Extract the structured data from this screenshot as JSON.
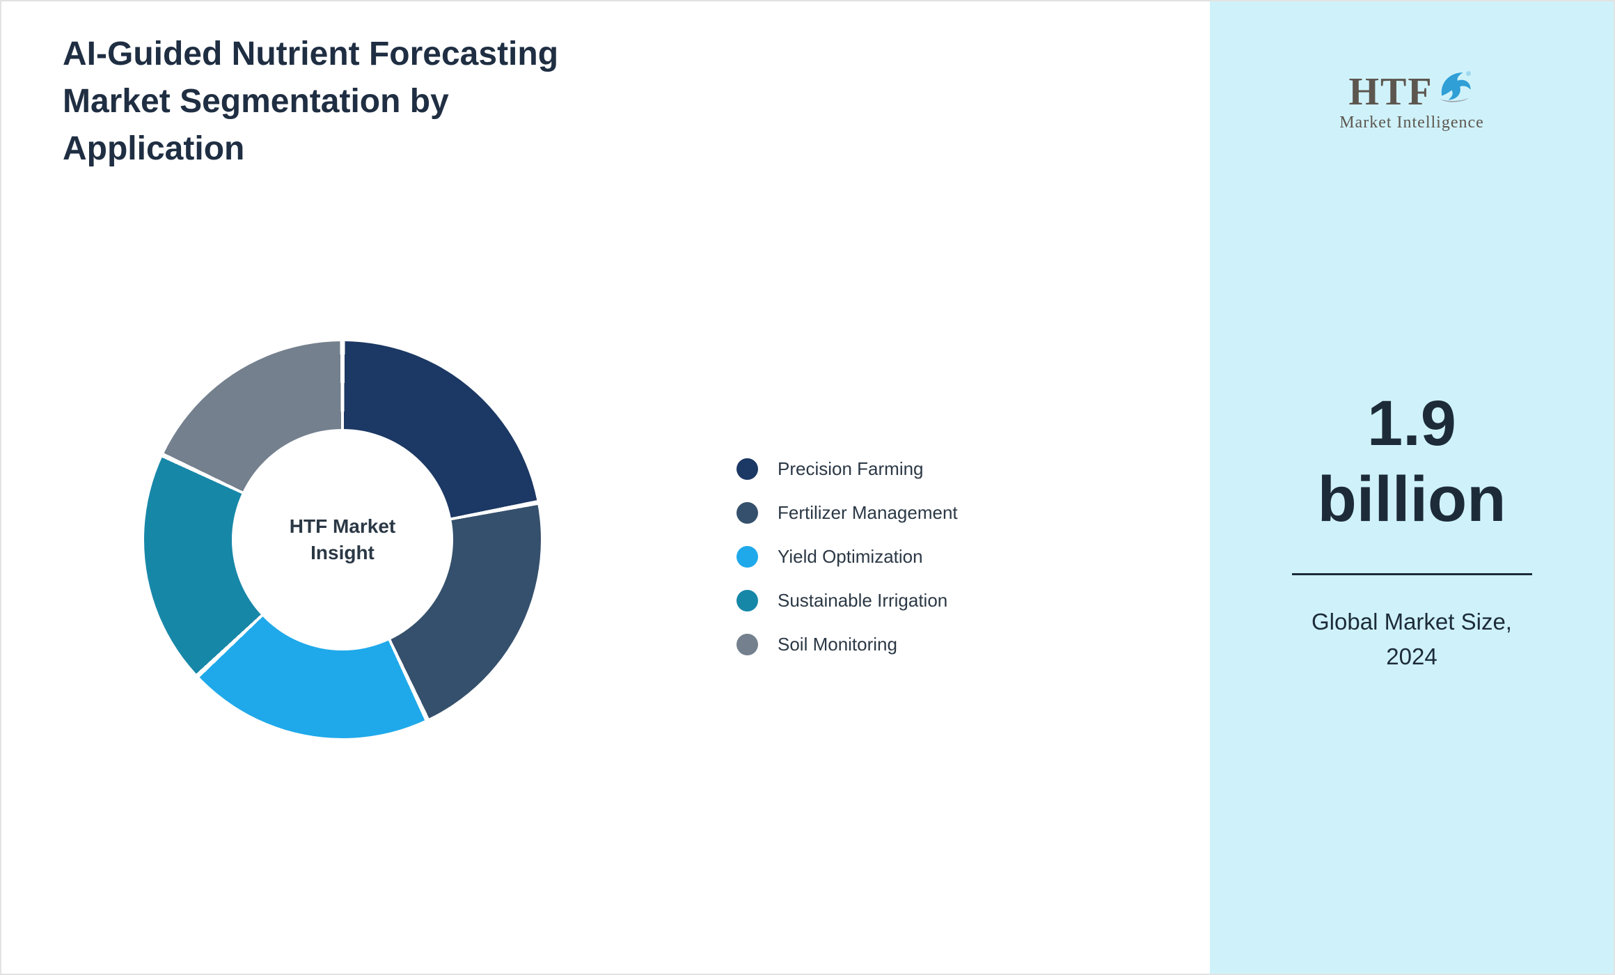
{
  "header": {
    "title_lines": [
      "AI-Guided Nutrient Forecasting",
      "Market Segmentation by",
      "Application"
    ]
  },
  "chart_data": {
    "type": "pie",
    "donut": true,
    "title": "AI-Guided Nutrient Forecasting Market Segmentation by Application",
    "center_label": "HTF Market Insight",
    "legend_position": "right",
    "start_angle_deg": 0,
    "direction": "clockwise",
    "segments": [
      {
        "label": "Precision Farming",
        "value": 22,
        "color": "#1c3864"
      },
      {
        "label": "Fertilizer Management",
        "value": 21,
        "color": "#35506c"
      },
      {
        "label": "Yield Optimization",
        "value": 20,
        "color": "#1fa9ea"
      },
      {
        "label": "Sustainable Irrigation",
        "value": 19,
        "color": "#1787a8"
      },
      {
        "label": "Soil Monitoring",
        "value": 18,
        "color": "#74808e"
      }
    ]
  },
  "sidebar": {
    "logo": {
      "text": "HTF",
      "subtext": "Market Intelligence",
      "dolphin_color": "#2f9fd6"
    },
    "value_line1": "1.9",
    "value_line2": "billion",
    "caption": "Global Market Size, 2024"
  }
}
